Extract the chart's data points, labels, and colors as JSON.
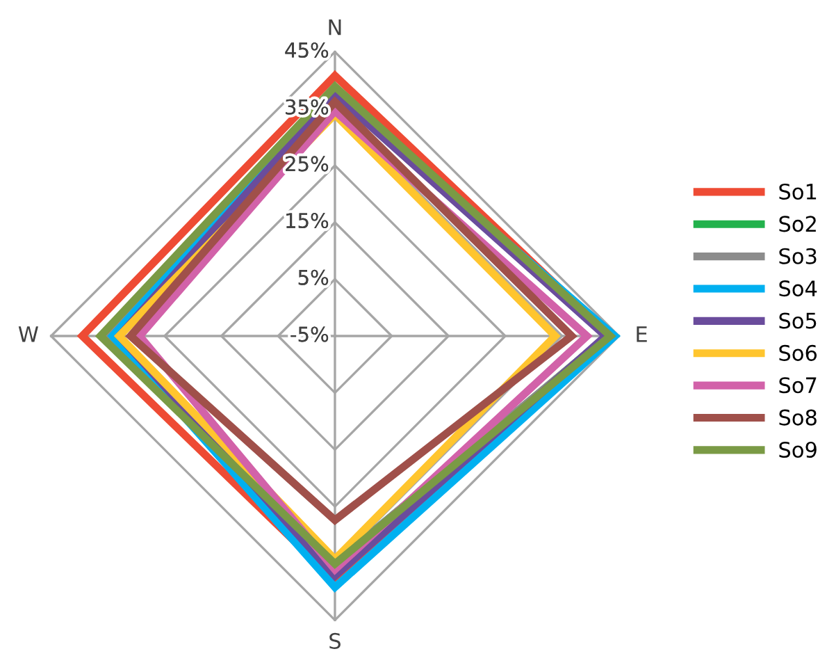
{
  "chart_data": {
    "type": "radar",
    "categories": [
      "N",
      "E",
      "S",
      "W"
    ],
    "ylim": [
      -5,
      45
    ],
    "yticks": [
      {
        "value": -5,
        "label": "-5%"
      },
      {
        "value": 5,
        "label": "5%"
      },
      {
        "value": 15,
        "label": "15%"
      },
      {
        "value": 25,
        "label": "25%"
      },
      {
        "value": 35,
        "label": "35%"
      },
      {
        "value": 45,
        "label": "45%"
      }
    ],
    "grid": true,
    "legend": "right",
    "marker": "none",
    "line_style": "solid",
    "series": [
      {
        "name": "So1",
        "color": "#ee4b34",
        "values": [
          40.8,
          43.5,
          38,
          39.5
        ]
      },
      {
        "name": "So2",
        "color": "#22b24c",
        "values": [
          38.5,
          43,
          35,
          35
        ]
      },
      {
        "name": "So3",
        "color": "#8c8c8c",
        "values": [
          38,
          43,
          35,
          35
        ]
      },
      {
        "name": "So4",
        "color": "#00b0f0",
        "values": [
          37.8,
          44.3,
          39.2,
          34.2
        ]
      },
      {
        "name": "So5",
        "color": "#6a4c9c",
        "values": [
          37.5,
          42.7,
          37.2,
          33
        ]
      },
      {
        "name": "So6",
        "color": "#ffc52e",
        "values": [
          34,
          33.8,
          34.3,
          33
        ]
      },
      {
        "name": "So7",
        "color": "#d262a9",
        "values": [
          34.6,
          39.4,
          36.1,
          29.4
        ]
      },
      {
        "name": "So8",
        "color": "#a0504a",
        "values": [
          36.2,
          36.7,
          27.4,
          31
        ]
      },
      {
        "name": "So9",
        "color": "#7a9a45",
        "values": [
          38.9,
          43.5,
          35.1,
          36.3
        ]
      }
    ]
  }
}
